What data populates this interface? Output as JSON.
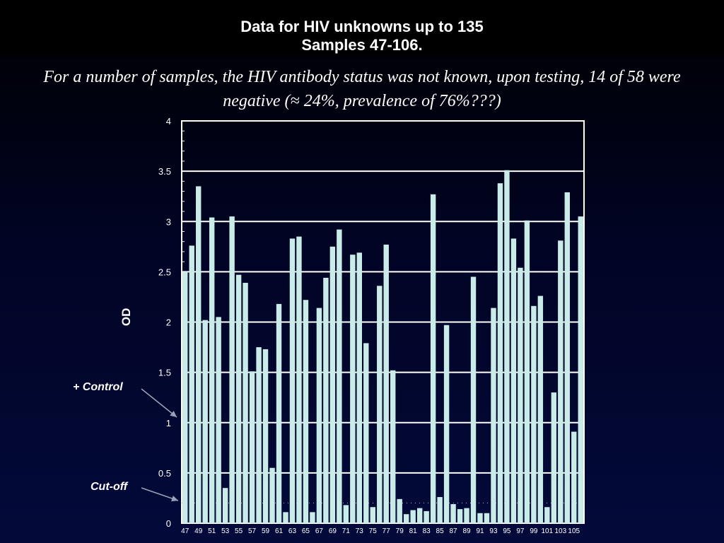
{
  "title": {
    "line1": "Data for HIV unknowns up to 135",
    "line2": "Samples 47-106."
  },
  "subtitle": "For a number of samples, the HIV antibody status was not known, upon testing, 14 of 58 were negative (≈ 24%, prevalence of 76%???)",
  "annotations": {
    "control": "+ Control",
    "cutoff": "Cut-off"
  },
  "colors": {
    "bar": "#c9ece9",
    "grid": "#ffffff",
    "cutoff_line": "#aab4cc"
  },
  "chart_data": {
    "type": "bar",
    "ylabel": "OD",
    "xlabel": "",
    "ylim": [
      0,
      4
    ],
    "yticks": [
      0,
      0.5,
      1,
      1.5,
      2,
      2.5,
      3,
      3.5,
      4
    ],
    "ytick_labels": [
      "0",
      "0.5",
      "1",
      "1.5",
      "2",
      "2.5",
      "3",
      "3.5",
      "4"
    ],
    "grid": true,
    "cutoff": 0.2,
    "positive_control": 1.0,
    "categories": [
      "47",
      "48",
      "49",
      "50",
      "51",
      "52",
      "53",
      "54",
      "55",
      "56",
      "57",
      "58",
      "59",
      "60",
      "61",
      "62",
      "63",
      "64",
      "65",
      "66",
      "67",
      "68",
      "69",
      "70",
      "71",
      "72",
      "73",
      "74",
      "75",
      "76",
      "77",
      "78",
      "79",
      "80",
      "81",
      "82",
      "83",
      "84",
      "85",
      "86",
      "87",
      "88",
      "89",
      "90",
      "91",
      "92",
      "93",
      "94",
      "95",
      "96",
      "97",
      "98",
      "99",
      "100",
      "101",
      "102",
      "103",
      "104",
      "105",
      "106"
    ],
    "xtick_labels": [
      "47",
      "49",
      "51",
      "53",
      "55",
      "57",
      "59",
      "61",
      "63",
      "65",
      "67",
      "69",
      "71",
      "73",
      "75",
      "77",
      "79",
      "81",
      "83",
      "85",
      "87",
      "89",
      "91",
      "93",
      "95",
      "97",
      "99",
      "101",
      "103",
      "105"
    ],
    "values": [
      2.5,
      2.76,
      3.35,
      2.02,
      3.04,
      2.05,
      0.35,
      3.05,
      2.47,
      2.39,
      1.51,
      1.75,
      1.73,
      0.55,
      2.18,
      0.11,
      2.83,
      2.85,
      2.22,
      0.11,
      2.14,
      2.44,
      2.75,
      2.92,
      0.18,
      2.67,
      2.69,
      1.79,
      0.16,
      2.36,
      2.77,
      1.52,
      0.24,
      0.09,
      0.13,
      0.15,
      0.12,
      3.27,
      0.26,
      1.97,
      0.19,
      0.14,
      0.15,
      2.45,
      0.1,
      0.1,
      2.14,
      3.38,
      3.51,
      2.83,
      2.54,
      3.01,
      2.16,
      2.26,
      0.16,
      1.3,
      2.81,
      3.29,
      0.91,
      3.05
    ]
  }
}
